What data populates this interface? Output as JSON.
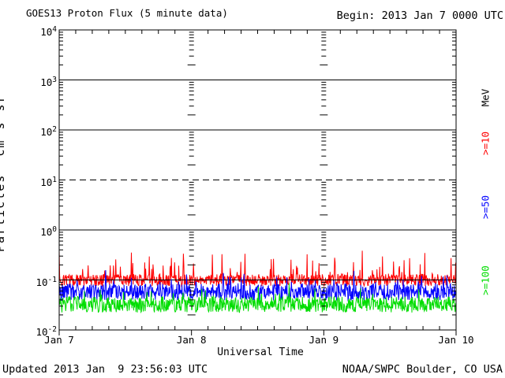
{
  "chart_data": {
    "type": "line",
    "title": "GOES13 Proton Flux (5 minute data)",
    "begin_label": "Begin: 2013 Jan 7 0000 UTC",
    "xlabel": "Universal Time",
    "x_tick_labels": [
      "Jan 7",
      "Jan 8",
      "Jan 9",
      "Jan 10"
    ],
    "x_span_days": 3,
    "points_per_day": 288,
    "y_tick_base": "10",
    "y_tick_exponents": [
      "4",
      "3",
      "2",
      "1",
      "0",
      "-1",
      "-2"
    ],
    "ylim": [
      0.01,
      10000
    ],
    "y_axis_unit_segments": [
      {
        "t": "Particles  cm"
      },
      {
        "sup": "-2"
      },
      {
        "t": "s"
      },
      {
        "sup": "-1"
      },
      {
        "t": "sr"
      },
      {
        "sup": "-1"
      }
    ],
    "log_gridlines_solid": [
      3,
      2,
      0,
      -1
    ],
    "log_gridlines_dashed": [
      1
    ],
    "right_axis_title": "MeV",
    "colors": {
      "axis": "#000000",
      "background": "#FFFFFF"
    },
    "series": [
      {
        "label": ">=10",
        "color": "#FF0000",
        "approx_mean_flux": 0.11,
        "approx_range": [
          0.07,
          0.4
        ],
        "log10_center": -1.0,
        "log10_band": 0.24,
        "spike_prob": 0.12,
        "spike_log10_max": 0.5
      },
      {
        "label": ">=50",
        "color": "#0000FF",
        "approx_mean_flux": 0.058,
        "approx_range": [
          0.035,
          0.16
        ],
        "log10_center": -1.24,
        "log10_band": 0.34,
        "spike_prob": 0.08,
        "spike_log10_max": 0.3
      },
      {
        "label": ">=100",
        "color": "#00DD00",
        "approx_mean_flux": 0.033,
        "approx_range": [
          0.02,
          0.09
        ],
        "log10_center": -1.49,
        "log10_band": 0.32,
        "spike_prob": 0.07,
        "spike_log10_max": 0.28
      }
    ],
    "noise_seed": 20130109
  },
  "footer": {
    "updated": "Updated 2013 Jan  9 23:56:03 UTC",
    "credit": "NOAA/SWPC Boulder, CO USA"
  }
}
